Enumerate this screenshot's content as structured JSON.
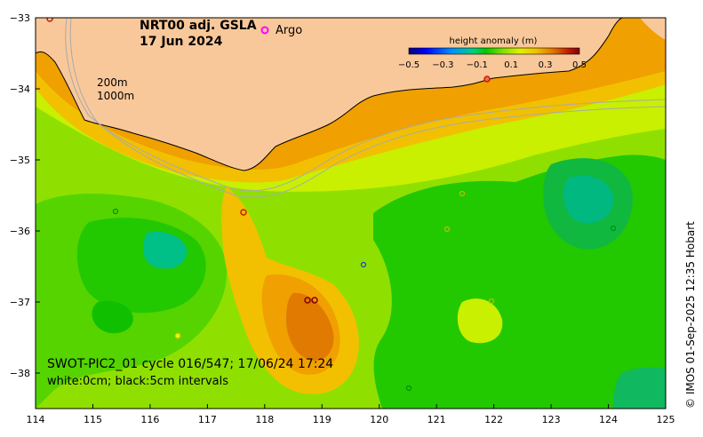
{
  "map": {
    "title_line1": "NRT00 adj. GSLA",
    "title_line2": "17 Jun 2024",
    "argo_label": "Argo",
    "argo_marker_color": "#ff00ff",
    "depth_labels": [
      "200m",
      "1000m"
    ],
    "colorbar": {
      "title": "height anomaly (m)",
      "ticks": [
        "−0.5",
        "−0.3",
        "−0.1",
        "0.1",
        "0.3",
        "0.5"
      ],
      "colors": [
        "#00007a",
        "#0000ff",
        "#0090ff",
        "#00e0e0",
        "#00c850",
        "#00d000",
        "#80e000",
        "#d0f000",
        "#f0e000",
        "#f0a000",
        "#e07000",
        "#c02000",
        "#800000"
      ]
    },
    "info_line1": "SWOT-PIC2_01 cycle 016/547; 17/06/24 17:24",
    "info_line2": "white:0cm; black:5cm intervals",
    "copyright": "© IMOS 01-Sep-2025 12:35 Hobart",
    "x_ticks": [
      "114",
      "115",
      "116",
      "117",
      "118",
      "119",
      "120",
      "121",
      "122",
      "123",
      "124",
      "125"
    ],
    "y_ticks": [
      "−33",
      "−34",
      "−35",
      "−36",
      "−37",
      "−38"
    ],
    "land_color": "#f9c89a",
    "lon_range": [
      114,
      125
    ],
    "lat_range": [
      -38.5,
      -33
    ]
  }
}
